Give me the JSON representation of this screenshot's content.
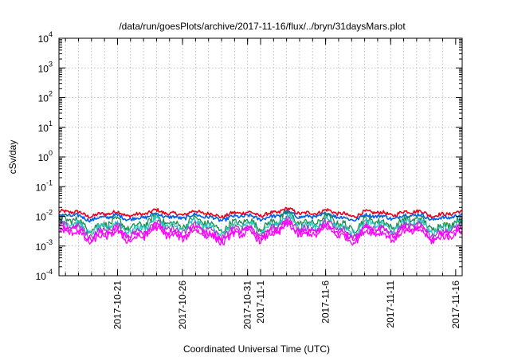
{
  "chart_data": {
    "type": "line",
    "title": "/data/run/goesPlots/archive/2017-11-16/flux/../bryn/31daysMars.plot",
    "xlabel": "Coordinated Universal Time (UTC)",
    "ylabel": "cSv/day",
    "yscale": "log",
    "ylim": [
      0.0001,
      10000
    ],
    "xlim_days": [
      0,
      31
    ],
    "y_ticks": [
      {
        "base": "10",
        "exp": "-4"
      },
      {
        "base": "10",
        "exp": "-3"
      },
      {
        "base": "10",
        "exp": "-2"
      },
      {
        "base": "10",
        "exp": "-1"
      },
      {
        "base": "10",
        "exp": "0"
      },
      {
        "base": "10",
        "exp": "1"
      },
      {
        "base": "10",
        "exp": "2"
      },
      {
        "base": "10",
        "exp": "3"
      },
      {
        "base": "10",
        "exp": "4"
      }
    ],
    "x_ticks": [
      {
        "label": "2017-10-21",
        "day": 4.5
      },
      {
        "label": "2017-10-26",
        "day": 9.5
      },
      {
        "label": "2017-10-31",
        "day": 14.5
      },
      {
        "label": "2017-11-1",
        "day": 15.5
      },
      {
        "label": "2017-11-6",
        "day": 20.5
      },
      {
        "label": "2017-11-11",
        "day": 25.5
      },
      {
        "label": "2017-11-16",
        "day": 30.5
      }
    ],
    "grid": true,
    "series": [
      {
        "name": "series-red",
        "color": "#e8001c",
        "base": 0.0125
      },
      {
        "name": "series-blue",
        "color": "#0060e8",
        "base": 0.0095
      },
      {
        "name": "series-dark-green",
        "color": "#1a8c4a",
        "base": 0.0058
      },
      {
        "name": "series-cyan",
        "color": "#20c8c0",
        "base": 0.0046
      },
      {
        "name": "series-purple",
        "color": "#a040c8",
        "base": 0.0036
      },
      {
        "name": "series-magenta",
        "color": "#ff00ff",
        "base": 0.0029
      },
      {
        "name": "series-magenta-2",
        "color": "#ff00ff",
        "base": 0.0023
      }
    ]
  }
}
